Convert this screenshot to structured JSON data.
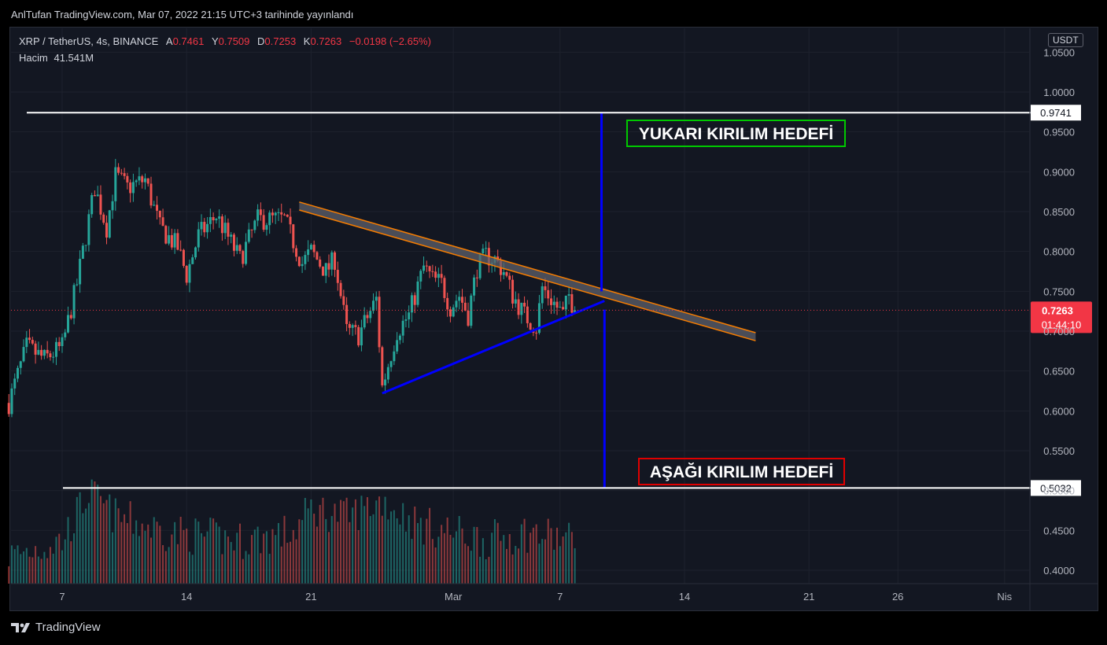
{
  "header": {
    "published": "AnlTufan TradingView.com, Mar 07, 2022 21:15 UTC+3 tarihinde yayınlandı"
  },
  "legend": {
    "symbol": "XRP / TetherUS, 4s, BINANCE",
    "open_label": "A",
    "open": "0.7461",
    "high_label": "Y",
    "high": "0.7509",
    "low_label": "D",
    "low": "0.7253",
    "close_label": "K",
    "close": "0.7263",
    "change": "−0.0198 (−2.65%)",
    "volume_label": "Hacim",
    "volume": "41.541M"
  },
  "axis": {
    "currency": "USDT",
    "last_price": "0.7263",
    "countdown": "01:44:10"
  },
  "footer": {
    "brand": "TradingView"
  },
  "annotations": {
    "upper_target": "YUKARI KIRILIM HEDEFİ",
    "lower_target": "AŞAĞI KIRILIM HEDEFİ"
  },
  "colors": {
    "background": "#131722",
    "up": "#26a69a",
    "down": "#ef5350",
    "trend": "#0000ff",
    "channel": "#f57c00",
    "green_box": "#00c800",
    "red_box": "#e00000",
    "price_tag": "#f23645"
  },
  "chart_data": {
    "type": "candlestick",
    "y_ticks": [
      1.05,
      1.0,
      0.95,
      0.9,
      0.85,
      0.8,
      0.75,
      0.7,
      0.65,
      0.6,
      0.55,
      0.5,
      0.45,
      0.4
    ],
    "y_tick_labels": [
      "1.0500",
      "1.0000",
      "0.9500",
      "0.9000",
      "0.8500",
      "0.8000",
      "0.7500",
      "0.7000",
      "0.6500",
      "0.6000",
      "0.5500",
      "0.5000",
      "0.4500",
      "0.4000"
    ],
    "x_ticks": [
      "2022-02-07",
      "2022-02-14",
      "2022-02-21",
      "2022-03-01",
      "2022-03-07",
      "2022-03-14",
      "2022-03-21",
      "2022-03-26",
      "2022-04-01"
    ],
    "x_tick_labels": [
      "7",
      "14",
      "21",
      "Mar",
      "7",
      "14",
      "21",
      "26",
      "Nis"
    ],
    "levels": [
      {
        "label": "0.9741",
        "value": 0.9741
      },
      {
        "label": "0.5032",
        "value": 0.5032
      }
    ],
    "last_price": 0.7263,
    "close_path": [
      [
        "2022-02-04 00:00",
        0.61
      ],
      [
        "2022-02-05 00:00",
        0.68
      ],
      [
        "2022-02-06 00:00",
        0.665
      ],
      [
        "2022-02-07 00:00",
        0.68
      ],
      [
        "2022-02-07 20:00",
        0.76
      ],
      [
        "2022-02-08 20:00",
        0.88
      ],
      [
        "2022-02-09 12:00",
        0.83
      ],
      [
        "2022-02-10 00:00",
        0.895
      ],
      [
        "2022-02-10 16:00",
        0.88
      ],
      [
        "2022-02-11 16:00",
        0.89
      ],
      [
        "2022-02-12 12:00",
        0.83
      ],
      [
        "2022-02-13 12:00",
        0.805
      ],
      [
        "2022-02-14 00:00",
        0.77
      ],
      [
        "2022-02-14 16:00",
        0.82
      ],
      [
        "2022-02-15 16:00",
        0.845
      ],
      [
        "2022-02-17 00:00",
        0.79
      ],
      [
        "2022-02-18 00:00",
        0.84
      ],
      [
        "2022-02-19 12:00",
        0.84
      ],
      [
        "2022-02-20 12:00",
        0.785
      ],
      [
        "2022-02-21 00:00",
        0.8
      ],
      [
        "2022-02-21 20:00",
        0.775
      ],
      [
        "2022-02-22 08:00",
        0.79
      ],
      [
        "2022-02-23 00:00",
        0.7
      ],
      [
        "2022-02-23 16:00",
        0.695
      ],
      [
        "2022-02-24 08:00",
        0.725
      ],
      [
        "2022-02-24 16:00",
        0.74
      ],
      [
        "2022-02-25 00:00",
        0.63
      ],
      [
        "2022-02-25 20:00",
        0.7
      ],
      [
        "2022-02-26 12:00",
        0.72
      ],
      [
        "2022-02-27 08:00",
        0.78
      ],
      [
        "2022-02-27 20:00",
        0.765
      ],
      [
        "2022-02-28 08:00",
        0.76
      ],
      [
        "2022-02-28 20:00",
        0.73
      ],
      [
        "2022-03-01 08:00",
        0.745
      ],
      [
        "2022-03-01 20:00",
        0.72
      ],
      [
        "2022-03-02 08:00",
        0.78
      ],
      [
        "2022-03-02 20:00",
        0.795
      ],
      [
        "2022-03-03 08:00",
        0.79
      ],
      [
        "2022-03-03 20:00",
        0.775
      ],
      [
        "2022-03-04 08:00",
        0.745
      ],
      [
        "2022-03-05 00:00",
        0.72
      ],
      [
        "2022-03-05 16:00",
        0.705
      ],
      [
        "2022-03-06 00:00",
        0.755
      ],
      [
        "2022-03-06 12:00",
        0.74
      ],
      [
        "2022-03-06 20:00",
        0.73
      ],
      [
        "2022-03-07 04:00",
        0.72
      ],
      [
        "2022-03-07 12:00",
        0.745
      ],
      [
        "2022-03-07 20:00",
        0.7263
      ]
    ],
    "volume_path": [
      [
        "2022-02-04 00:00",
        0.41
      ],
      [
        "2022-02-07 00:00",
        0.43
      ],
      [
        "2022-02-08 12:00",
        0.49
      ],
      [
        "2022-02-10 00:00",
        0.46
      ],
      [
        "2022-02-13 00:00",
        0.44
      ],
      [
        "2022-02-17 00:00",
        0.43
      ],
      [
        "2022-02-20 00:00",
        0.44
      ],
      [
        "2022-02-21 00:00",
        0.47
      ],
      [
        "2022-02-23 00:00",
        0.46
      ],
      [
        "2022-02-25 00:00",
        0.48
      ],
      [
        "2022-02-27 00:00",
        0.45
      ],
      [
        "2022-03-01 00:00",
        0.44
      ],
      [
        "2022-03-03 00:00",
        0.43
      ],
      [
        "2022-03-05 00:00",
        0.44
      ],
      [
        "2022-03-07 20:00",
        0.43
      ]
    ],
    "drawings": {
      "descending_channel_top": [
        [
          "2022-02-20 08:00",
          0.862
        ],
        [
          "2022-03-18 00:00",
          0.698
        ]
      ],
      "descending_channel_bottom": [
        [
          "2022-02-20 08:00",
          0.852
        ],
        [
          "2022-03-18 00:00",
          0.688
        ]
      ],
      "ascending_trendline": [
        [
          "2022-02-25 00:00",
          0.622
        ],
        [
          "2022-03-09 12:00",
          0.738
        ]
      ],
      "upper_projection": [
        [
          "2022-03-09 08:00",
          0.9741
        ],
        [
          "2022-03-09 08:00",
          0.75
        ]
      ],
      "lower_projection": [
        [
          "2022-03-09 12:00",
          0.727
        ],
        [
          "2022-03-09 12:00",
          0.5032
        ]
      ]
    }
  }
}
